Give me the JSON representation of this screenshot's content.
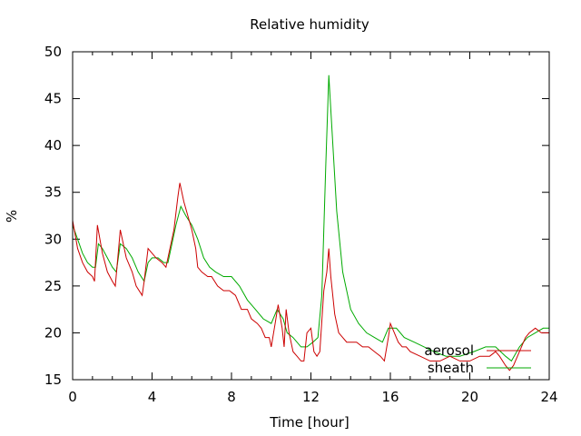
{
  "chart_data": {
    "type": "line",
    "title": "Relative humidity",
    "xlabel": "Time [hour]",
    "ylabel": "%",
    "xlim": [
      0,
      24
    ],
    "ylim": [
      15,
      50
    ],
    "xticks": [
      0,
      4,
      8,
      12,
      16,
      20,
      24
    ],
    "yticks": [
      15,
      20,
      25,
      30,
      35,
      40,
      45,
      50
    ],
    "grid": false,
    "legend_position": "bottom-right",
    "series": [
      {
        "name": "aerosol",
        "color": "#cc0000",
        "points": [
          [
            0,
            32
          ],
          [
            0.25,
            29
          ],
          [
            0.5,
            27.5
          ],
          [
            0.75,
            26.5
          ],
          [
            1.0,
            26
          ],
          [
            1.1,
            25.5
          ],
          [
            1.25,
            31.5
          ],
          [
            1.5,
            28.5
          ],
          [
            1.75,
            26.5
          ],
          [
            2.0,
            25.5
          ],
          [
            2.15,
            25
          ],
          [
            2.4,
            31
          ],
          [
            2.7,
            28
          ],
          [
            3.0,
            26.5
          ],
          [
            3.2,
            25
          ],
          [
            3.5,
            24
          ],
          [
            3.6,
            25.5
          ],
          [
            3.8,
            29
          ],
          [
            4.0,
            28.5
          ],
          [
            4.2,
            28
          ],
          [
            4.5,
            27.5
          ],
          [
            4.7,
            27
          ],
          [
            4.9,
            29
          ],
          [
            5.1,
            31
          ],
          [
            5.3,
            34.5
          ],
          [
            5.4,
            36
          ],
          [
            5.6,
            34
          ],
          [
            5.8,
            32.5
          ],
          [
            6.0,
            31
          ],
          [
            6.2,
            29
          ],
          [
            6.3,
            27
          ],
          [
            6.5,
            26.5
          ],
          [
            6.8,
            26
          ],
          [
            7.0,
            26
          ],
          [
            7.3,
            25
          ],
          [
            7.6,
            24.5
          ],
          [
            7.9,
            24.5
          ],
          [
            8.2,
            24
          ],
          [
            8.5,
            22.5
          ],
          [
            8.8,
            22.5
          ],
          [
            9.0,
            21.5
          ],
          [
            9.3,
            21
          ],
          [
            9.5,
            20.5
          ],
          [
            9.7,
            19.5
          ],
          [
            9.9,
            19.5
          ],
          [
            10.0,
            18.5
          ],
          [
            10.2,
            21
          ],
          [
            10.35,
            23
          ],
          [
            10.55,
            20.5
          ],
          [
            10.65,
            18.5
          ],
          [
            10.75,
            22.5
          ],
          [
            10.9,
            20
          ],
          [
            11.0,
            19
          ],
          [
            11.1,
            18
          ],
          [
            11.3,
            17.5
          ],
          [
            11.5,
            17
          ],
          [
            11.65,
            17
          ],
          [
            11.8,
            20
          ],
          [
            12.0,
            20.5
          ],
          [
            12.15,
            18
          ],
          [
            12.3,
            17.5
          ],
          [
            12.45,
            18
          ],
          [
            12.65,
            24.5
          ],
          [
            12.8,
            26.5
          ],
          [
            12.9,
            29
          ],
          [
            13.0,
            26
          ],
          [
            13.2,
            22
          ],
          [
            13.4,
            20
          ],
          [
            13.6,
            19.5
          ],
          [
            13.8,
            19
          ],
          [
            14.0,
            19
          ],
          [
            14.3,
            19
          ],
          [
            14.6,
            18.5
          ],
          [
            14.9,
            18.5
          ],
          [
            15.2,
            18
          ],
          [
            15.5,
            17.5
          ],
          [
            15.7,
            17
          ],
          [
            15.9,
            19.5
          ],
          [
            16.0,
            21
          ],
          [
            16.2,
            20
          ],
          [
            16.4,
            19
          ],
          [
            16.6,
            18.5
          ],
          [
            16.8,
            18.5
          ],
          [
            17.0,
            18
          ],
          [
            17.5,
            17.5
          ],
          [
            18.0,
            17
          ],
          [
            18.5,
            17
          ],
          [
            19.0,
            17.5
          ],
          [
            19.5,
            17
          ],
          [
            20.0,
            17
          ],
          [
            20.5,
            17.5
          ],
          [
            21.0,
            17.5
          ],
          [
            21.3,
            18
          ],
          [
            21.5,
            17.5
          ],
          [
            21.8,
            16.5
          ],
          [
            22.0,
            16
          ],
          [
            22.2,
            16.5
          ],
          [
            22.5,
            18
          ],
          [
            22.8,
            19.5
          ],
          [
            23.0,
            20
          ],
          [
            23.3,
            20.5
          ],
          [
            23.6,
            20
          ],
          [
            24,
            20
          ]
        ]
      },
      {
        "name": "sheath",
        "color": "#00aa00",
        "points": [
          [
            0,
            31.5
          ],
          [
            0.25,
            30
          ],
          [
            0.5,
            28.5
          ],
          [
            0.75,
            27.5
          ],
          [
            1.0,
            27
          ],
          [
            1.15,
            27
          ],
          [
            1.3,
            29.5
          ],
          [
            1.5,
            29
          ],
          [
            1.75,
            28
          ],
          [
            2.0,
            27
          ],
          [
            2.2,
            26.5
          ],
          [
            2.4,
            29.5
          ],
          [
            2.7,
            29
          ],
          [
            3.0,
            28
          ],
          [
            3.3,
            26.5
          ],
          [
            3.6,
            25.5
          ],
          [
            3.8,
            27.5
          ],
          [
            4.0,
            28
          ],
          [
            4.3,
            28
          ],
          [
            4.6,
            27.5
          ],
          [
            4.8,
            27.5
          ],
          [
            5.0,
            29.5
          ],
          [
            5.2,
            31.5
          ],
          [
            5.45,
            33.5
          ],
          [
            5.7,
            32.5
          ],
          [
            6.0,
            31.5
          ],
          [
            6.3,
            30
          ],
          [
            6.6,
            28
          ],
          [
            6.9,
            27
          ],
          [
            7.2,
            26.5
          ],
          [
            7.6,
            26
          ],
          [
            8.0,
            26
          ],
          [
            8.4,
            25
          ],
          [
            8.8,
            23.5
          ],
          [
            9.2,
            22.5
          ],
          [
            9.6,
            21.5
          ],
          [
            10.0,
            21
          ],
          [
            10.3,
            22.5
          ],
          [
            10.6,
            21.5
          ],
          [
            10.8,
            20
          ],
          [
            11.1,
            19.5
          ],
          [
            11.5,
            18.5
          ],
          [
            11.8,
            18.5
          ],
          [
            12.1,
            19
          ],
          [
            12.35,
            19.5
          ],
          [
            12.55,
            24
          ],
          [
            12.75,
            38
          ],
          [
            12.9,
            47.5
          ],
          [
            13.05,
            42
          ],
          [
            13.3,
            33
          ],
          [
            13.6,
            26.5
          ],
          [
            14.0,
            22.5
          ],
          [
            14.4,
            21
          ],
          [
            14.8,
            20
          ],
          [
            15.2,
            19.5
          ],
          [
            15.6,
            19
          ],
          [
            15.9,
            20.5
          ],
          [
            16.3,
            20.5
          ],
          [
            16.7,
            19.5
          ],
          [
            17.2,
            19
          ],
          [
            17.7,
            18.5
          ],
          [
            18.2,
            18
          ],
          [
            18.8,
            17.5
          ],
          [
            19.5,
            17.5
          ],
          [
            20.2,
            18
          ],
          [
            20.8,
            18.5
          ],
          [
            21.3,
            18.5
          ],
          [
            21.8,
            17.5
          ],
          [
            22.1,
            17
          ],
          [
            22.5,
            18.5
          ],
          [
            22.9,
            19.5
          ],
          [
            23.3,
            20
          ],
          [
            23.7,
            20.5
          ],
          [
            24,
            20.5
          ]
        ]
      }
    ]
  }
}
